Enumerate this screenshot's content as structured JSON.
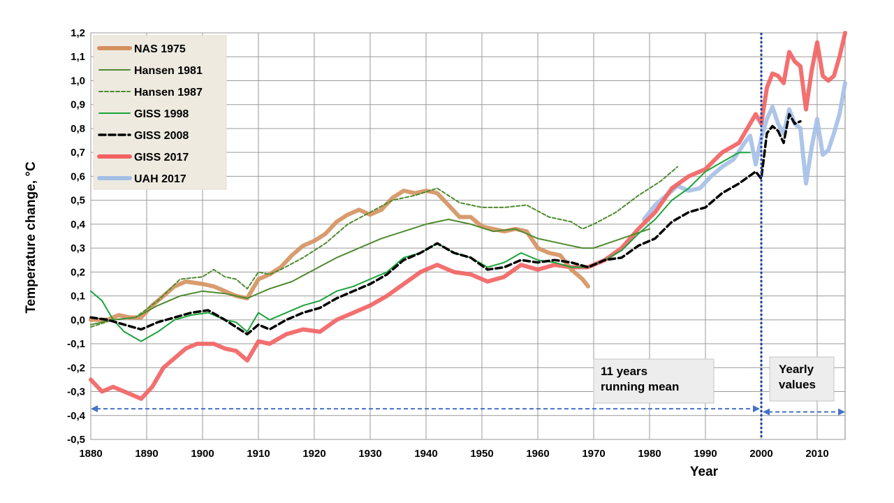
{
  "chart_data": {
    "type": "line",
    "title": "",
    "xlabel": "Year",
    "ylabel": "Temperature change, °C",
    "xlim": [
      1880,
      2015
    ],
    "ylim": [
      -0.5,
      1.2
    ],
    "x_ticks": [
      "1880",
      "1890",
      "1900",
      "1910",
      "1920",
      "1930",
      "1940",
      "1950",
      "1960",
      "1970",
      "1980",
      "1990",
      "2000",
      "2010"
    ],
    "y_ticks": [
      "-0,5",
      "-0,4",
      "-0,3",
      "-0,2",
      "-0,1",
      "0,0",
      "0,1",
      "0,2",
      "0,3",
      "0,4",
      "0,5",
      "0,6",
      "0,7",
      "0,8",
      "0,9",
      "1,0",
      "1,1",
      "1,2"
    ],
    "grid": true,
    "legend_position": "top-left",
    "series": [
      {
        "name": "NAS 1975",
        "color": "#d4915e",
        "style": "solid-thick",
        "x": [
          1880,
          1883,
          1885,
          1887,
          1889,
          1891,
          1893,
          1895,
          1897,
          1900,
          1902,
          1904,
          1906,
          1908,
          1910,
          1912,
          1914,
          1916,
          1918,
          1920,
          1922,
          1924,
          1926,
          1928,
          1930,
          1932,
          1934,
          1936,
          1938,
          1940,
          1942,
          1944,
          1946,
          1948,
          1950,
          1952,
          1954,
          1956,
          1958,
          1960,
          1962,
          1964,
          1966,
          1968,
          1969
        ],
        "y": [
          0.0,
          0.0,
          0.02,
          0.01,
          0.01,
          0.06,
          0.1,
          0.14,
          0.16,
          0.15,
          0.14,
          0.12,
          0.1,
          0.09,
          0.17,
          0.19,
          0.22,
          0.27,
          0.31,
          0.33,
          0.36,
          0.41,
          0.44,
          0.46,
          0.44,
          0.46,
          0.51,
          0.54,
          0.53,
          0.54,
          0.53,
          0.48,
          0.43,
          0.43,
          0.39,
          0.38,
          0.37,
          0.38,
          0.37,
          0.3,
          0.28,
          0.27,
          0.21,
          0.17,
          0.14
        ]
      },
      {
        "name": "Hansen 1981",
        "color": "#4e8a2e",
        "style": "solid-thin",
        "x": [
          1880,
          1884,
          1888,
          1892,
          1896,
          1900,
          1904,
          1908,
          1912,
          1916,
          1920,
          1924,
          1928,
          1932,
          1936,
          1940,
          1944,
          1948,
          1952,
          1956,
          1960,
          1964,
          1968,
          1970,
          1975,
          1980
        ],
        "y": [
          -0.02,
          0.0,
          0.01,
          0.06,
          0.1,
          0.12,
          0.11,
          0.09,
          0.13,
          0.16,
          0.21,
          0.26,
          0.3,
          0.34,
          0.37,
          0.4,
          0.42,
          0.4,
          0.37,
          0.38,
          0.34,
          0.32,
          0.3,
          0.3,
          0.34,
          0.38
        ]
      },
      {
        "name": "Hansen 1987",
        "color": "#4e8a2e",
        "style": "dashed-thin",
        "x": [
          1880,
          1884,
          1888,
          1892,
          1896,
          1900,
          1902,
          1904,
          1906,
          1908,
          1910,
          1912,
          1914,
          1918,
          1922,
          1926,
          1930,
          1934,
          1938,
          1942,
          1946,
          1950,
          1954,
          1958,
          1962,
          1966,
          1968,
          1970,
          1974,
          1978,
          1982,
          1985
        ],
        "y": [
          -0.03,
          0.0,
          0.01,
          0.08,
          0.17,
          0.18,
          0.21,
          0.18,
          0.17,
          0.13,
          0.2,
          0.19,
          0.21,
          0.26,
          0.32,
          0.4,
          0.45,
          0.5,
          0.52,
          0.55,
          0.49,
          0.47,
          0.47,
          0.48,
          0.43,
          0.41,
          0.38,
          0.4,
          0.45,
          0.52,
          0.58,
          0.64
        ]
      },
      {
        "name": "GISS 1998",
        "color": "#1aa33a",
        "style": "solid-thin",
        "x": [
          1880,
          1882,
          1884,
          1886,
          1889,
          1892,
          1895,
          1898,
          1901,
          1904,
          1906,
          1908,
          1910,
          1912,
          1915,
          1918,
          1921,
          1924,
          1927,
          1930,
          1933,
          1936,
          1939,
          1942,
          1945,
          1948,
          1951,
          1954,
          1957,
          1960,
          1963,
          1966,
          1969,
          1972,
          1975,
          1978,
          1981,
          1984,
          1987,
          1990,
          1993,
          1996,
          1998
        ],
        "y": [
          0.12,
          0.08,
          0.0,
          -0.05,
          -0.09,
          -0.05,
          0.0,
          0.02,
          0.03,
          0.0,
          -0.01,
          -0.05,
          0.03,
          0.0,
          0.03,
          0.06,
          0.08,
          0.12,
          0.14,
          0.17,
          0.2,
          0.26,
          0.28,
          0.32,
          0.28,
          0.26,
          0.22,
          0.24,
          0.28,
          0.25,
          0.24,
          0.22,
          0.22,
          0.25,
          0.29,
          0.36,
          0.42,
          0.5,
          0.55,
          0.62,
          0.66,
          0.7,
          0.7
        ]
      },
      {
        "name": "GISS 2008",
        "color": "#000000",
        "style": "dashed-thick",
        "x": [
          1880,
          1883,
          1886,
          1889,
          1892,
          1895,
          1898,
          1901,
          1904,
          1906,
          1908,
          1910,
          1912,
          1915,
          1918,
          1921,
          1924,
          1927,
          1930,
          1933,
          1936,
          1939,
          1942,
          1945,
          1948,
          1951,
          1954,
          1957,
          1960,
          1963,
          1966,
          1969,
          1972,
          1975,
          1978,
          1981,
          1984,
          1987,
          1990,
          1993,
          1996,
          1999,
          2000,
          2001,
          2002,
          2003,
          2004,
          2005,
          2006,
          2007
        ],
        "y": [
          0.01,
          0.0,
          -0.02,
          -0.04,
          -0.01,
          0.01,
          0.03,
          0.04,
          0.0,
          -0.03,
          -0.06,
          -0.02,
          -0.04,
          0.0,
          0.03,
          0.05,
          0.09,
          0.12,
          0.15,
          0.19,
          0.25,
          0.28,
          0.32,
          0.28,
          0.26,
          0.21,
          0.22,
          0.25,
          0.24,
          0.25,
          0.24,
          0.22,
          0.25,
          0.26,
          0.31,
          0.34,
          0.41,
          0.45,
          0.47,
          0.53,
          0.57,
          0.62,
          0.59,
          0.78,
          0.81,
          0.79,
          0.74,
          0.86,
          0.82,
          0.83
        ]
      },
      {
        "name": "GISS 2017",
        "color": "#f26161",
        "style": "solid-thick",
        "x": [
          1880,
          1882,
          1884,
          1886,
          1889,
          1891,
          1893,
          1895,
          1897,
          1899,
          1902,
          1904,
          1906,
          1908,
          1910,
          1912,
          1915,
          1918,
          1921,
          1924,
          1927,
          1930,
          1933,
          1936,
          1939,
          1942,
          1945,
          1948,
          1951,
          1954,
          1957,
          1960,
          1963,
          1966,
          1969,
          1972,
          1975,
          1978,
          1981,
          1984,
          1987,
          1990,
          1993,
          1996,
          1999,
          2000,
          2001,
          2002,
          2003,
          2004,
          2005,
          2006,
          2007,
          2008,
          2009,
          2010,
          2011,
          2012,
          2013,
          2014,
          2015
        ],
        "y": [
          -0.25,
          -0.3,
          -0.28,
          -0.3,
          -0.33,
          -0.28,
          -0.2,
          -0.16,
          -0.12,
          -0.1,
          -0.1,
          -0.12,
          -0.13,
          -0.17,
          -0.09,
          -0.1,
          -0.06,
          -0.04,
          -0.05,
          0.0,
          0.03,
          0.06,
          0.1,
          0.15,
          0.2,
          0.23,
          0.2,
          0.19,
          0.16,
          0.18,
          0.23,
          0.21,
          0.23,
          0.22,
          0.22,
          0.25,
          0.3,
          0.38,
          0.45,
          0.55,
          0.6,
          0.63,
          0.7,
          0.74,
          0.86,
          0.82,
          0.97,
          1.03,
          1.02,
          0.99,
          1.12,
          1.08,
          1.06,
          0.88,
          1.04,
          1.16,
          1.02,
          1.0,
          1.02,
          1.1,
          1.2
        ]
      },
      {
        "name": "UAH 2017",
        "color": "#a4bfe6",
        "style": "solid-thick",
        "x": [
          1979,
          1981,
          1983,
          1985,
          1987,
          1989,
          1991,
          1993,
          1995,
          1997,
          1998,
          1999,
          2000,
          2001,
          2002,
          2003,
          2004,
          2005,
          2006,
          2007,
          2008,
          2009,
          2010,
          2011,
          2012,
          2013,
          2014,
          2015
        ],
        "y": [
          0.42,
          0.48,
          0.52,
          0.56,
          0.54,
          0.55,
          0.6,
          0.64,
          0.67,
          0.74,
          0.77,
          0.65,
          0.76,
          0.84,
          0.89,
          0.82,
          0.78,
          0.88,
          0.82,
          0.8,
          0.57,
          0.72,
          0.84,
          0.69,
          0.71,
          0.78,
          0.86,
          0.99
        ]
      }
    ],
    "annotations": {
      "running_mean_label": [
        "11 years",
        "running mean"
      ],
      "yearly_label": [
        "Yearly",
        "values"
      ],
      "divider_year": 2000
    }
  }
}
